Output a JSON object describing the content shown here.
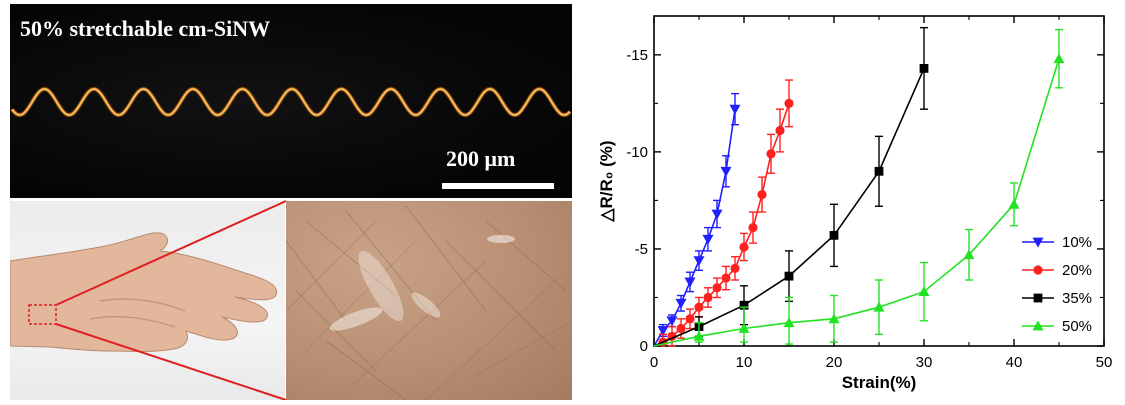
{
  "photo": {
    "title": "50% stretchable cm-SiNW",
    "scale_label": "200 μm"
  },
  "chart_data": {
    "type": "line",
    "xlabel": "Strain(%)",
    "ylabel": "△R/R₀ (%)",
    "xlim": [
      0,
      50
    ],
    "ylim": [
      0,
      -17
    ],
    "xticks": [
      0,
      10,
      20,
      30,
      40,
      50
    ],
    "yticks": [
      0,
      -5,
      -10,
      -15
    ],
    "ytick_labels": [
      "0",
      "-5",
      "-10",
      "-15"
    ],
    "legend_position": "right, lower-middle",
    "series": [
      {
        "name": "10%",
        "color": "#1f1fff",
        "marker": "triangle-down",
        "x": [
          0,
          1,
          2,
          3,
          4,
          5,
          6,
          7,
          8,
          9
        ],
        "y": [
          0,
          -0.8,
          -1.3,
          -2.2,
          -3.3,
          -4.4,
          -5.5,
          -6.8,
          -9.0,
          -12.2
        ],
        "err": [
          0,
          0.3,
          0.3,
          0.4,
          0.5,
          0.5,
          0.6,
          0.7,
          0.8,
          0.8
        ]
      },
      {
        "name": "20%",
        "color": "#ff2020",
        "marker": "circle",
        "x": [
          0,
          1,
          2,
          3,
          4,
          5,
          6,
          7,
          8,
          9,
          10,
          11,
          12,
          13,
          14,
          15
        ],
        "y": [
          0,
          -0.2,
          -0.5,
          -0.9,
          -1.4,
          -2.0,
          -2.5,
          -3.0,
          -3.5,
          -4.0,
          -5.1,
          -6.1,
          -7.8,
          -9.9,
          -11.1,
          -12.5
        ],
        "err": [
          0,
          0.4,
          0.5,
          0.5,
          0.5,
          0.5,
          0.5,
          0.5,
          0.6,
          0.6,
          0.7,
          0.8,
          0.9,
          1.0,
          1.1,
          1.2
        ]
      },
      {
        "name": "35%",
        "color": "#000000",
        "marker": "square",
        "x": [
          0,
          5,
          10,
          15,
          20,
          25,
          30
        ],
        "y": [
          0,
          -1.0,
          -2.1,
          -3.6,
          -5.7,
          -9.0,
          -14.3
        ],
        "err": [
          0,
          0.5,
          1.0,
          1.3,
          1.6,
          1.8,
          2.1
        ]
      },
      {
        "name": "50%",
        "color": "#22e322",
        "marker": "triangle-up",
        "x": [
          0,
          5,
          10,
          15,
          20,
          25,
          30,
          35,
          40,
          45
        ],
        "y": [
          0,
          -0.5,
          -0.9,
          -1.2,
          -1.4,
          -2.0,
          -2.8,
          -4.7,
          -7.3,
          -14.8
        ],
        "err": [
          0,
          0.7,
          1.1,
          1.3,
          1.2,
          1.4,
          1.5,
          1.3,
          1.1,
          1.5
        ]
      }
    ]
  }
}
